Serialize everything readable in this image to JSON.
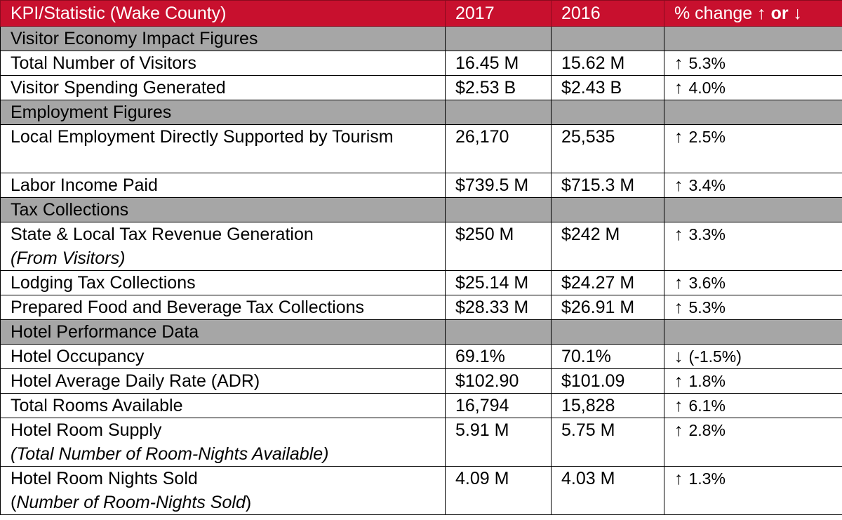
{
  "header": {
    "kpi": "KPI/Statistic (Wake County)",
    "y2017": "2017",
    "y2016": "2016",
    "change_prefix": "% change ↑ ",
    "change_or": "or",
    "change_suffix": " ↓"
  },
  "sections": [
    {
      "label": "Visitor Economy Impact Figures"
    },
    {
      "label": "Employment Figures"
    },
    {
      "label": "Tax Collections"
    },
    {
      "label": "Hotel Performance Data"
    }
  ],
  "rows": [
    {
      "label": "Total Number of Visitors",
      "v2017": "16.45 M",
      "v2016": "15.62 M",
      "arrow": "↑",
      "change": "5.3%"
    },
    {
      "label": "Visitor Spending Generated",
      "v2017": "$2.53 B",
      "v2016": "$2.43 B",
      "arrow": "↑",
      "change": "4.0%"
    },
    {
      "label": "Local Employment Directly Supported by Tourism",
      "v2017": "26,170",
      "v2016": "25,535",
      "arrow": "↑",
      "change": "2.5%"
    },
    {
      "label": "Labor Income Paid",
      "v2017": "$739.5 M",
      "v2016": "$715.3 M",
      "arrow": "↑",
      "change": "3.4%"
    },
    {
      "label": "State & Local Tax Revenue Generation",
      "sub": "(From Visitors)",
      "v2017": "$250 M",
      "v2016": "$242 M",
      "arrow": "↑",
      "change": "3.3%"
    },
    {
      "label": "Lodging Tax Collections",
      "v2017": "$25.14 M",
      "v2016": "$24.27 M",
      "arrow": "↑",
      "change": "3.6%"
    },
    {
      "label": "Prepared Food and Beverage Tax Collections",
      "v2017": "$28.33 M",
      "v2016": "$26.91 M",
      "arrow": "↑",
      "change": "5.3%"
    },
    {
      "label": "Hotel Occupancy",
      "v2017": "69.1%",
      "v2016": "70.1%",
      "arrow": "↓",
      "change": "(-1.5%)"
    },
    {
      "label": "Hotel Average Daily Rate (ADR)",
      "v2017": "$102.90",
      "v2016": "$101.09",
      "arrow": "↑",
      "change": "1.8%"
    },
    {
      "label": "Total Rooms Available",
      "v2017": "16,794",
      "v2016": "15,828",
      "arrow": "↑",
      "change": "6.1%"
    },
    {
      "label": "Hotel Room Supply",
      "sub": "(Total Number of Room-Nights Available)",
      "v2017": "5.91 M",
      "v2016": "5.75 M",
      "arrow": "↑",
      "change": "2.8%"
    },
    {
      "label": "Hotel Room Nights Sold",
      "sub_open": "(",
      "sub": "Number of Room-Nights Sold",
      "sub_close": ")",
      "v2017": "4.09 M",
      "v2016": "4.03 M",
      "arrow": "↑",
      "change": "1.3%"
    }
  ]
}
